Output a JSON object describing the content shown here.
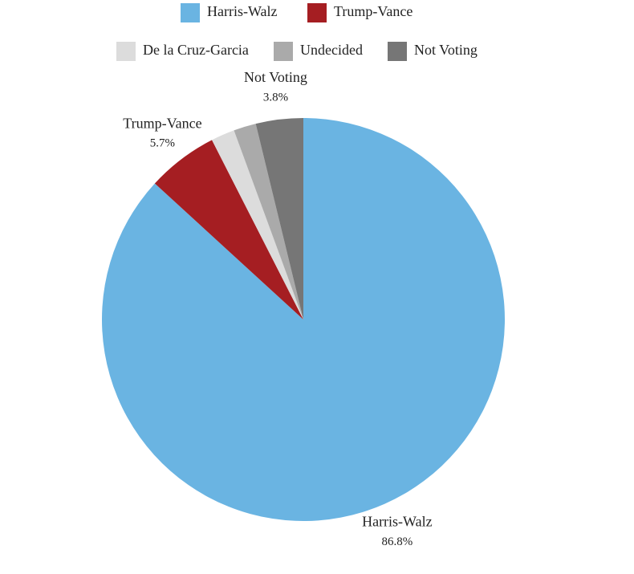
{
  "chart_data": {
    "type": "pie",
    "categories": [
      "Harris-Walz",
      "Trump-Vance",
      "De la Cruz-Garcia",
      "Undecided",
      "Not Voting"
    ],
    "values": [
      86.8,
      5.7,
      1.9,
      1.8,
      3.8
    ],
    "value_labels": [
      "86.8%",
      "5.7%",
      null,
      null,
      "3.8%"
    ],
    "colors": [
      "#6ab4e2",
      "#a51e22",
      "#dcdcdc",
      "#aaaaaa",
      "#767676"
    ],
    "legend": "top"
  }
}
